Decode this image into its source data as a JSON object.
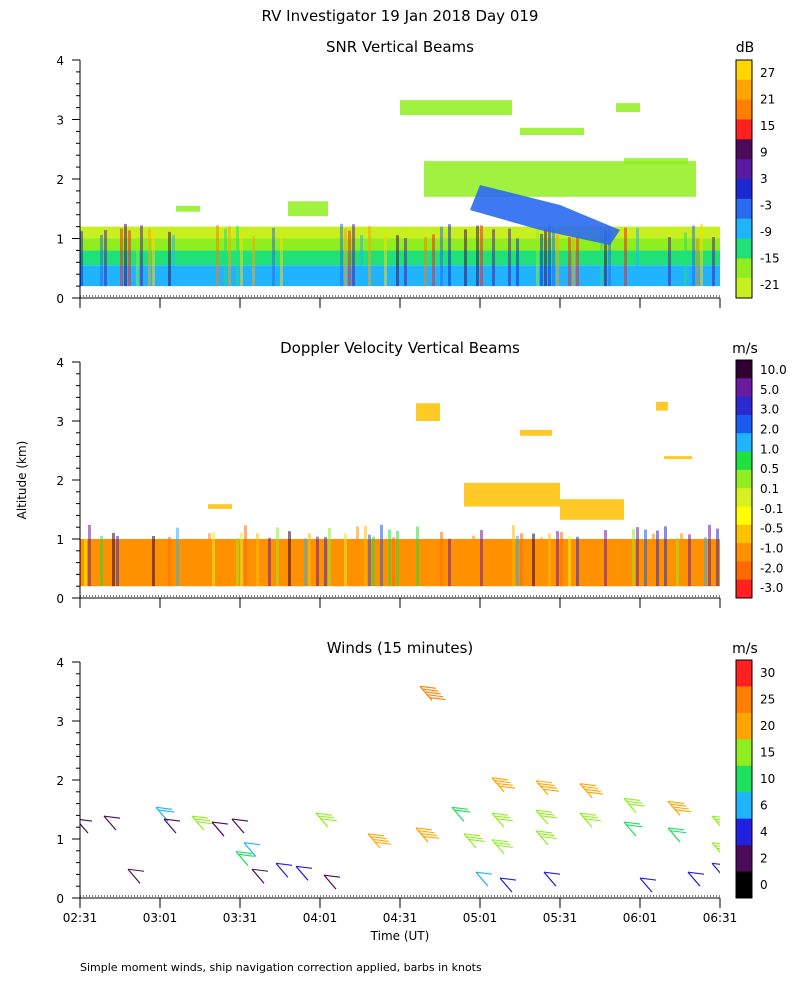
{
  "title": "RV Investigator  19 Jan 2018 Day 019",
  "y_axis_label": "Altitude (km)",
  "x_axis_label": "Time (UT)",
  "footnote": "Simple moment winds, ship navigation correction applied, barbs in knots",
  "time_ticks": [
    "02:31",
    "03:01",
    "03:31",
    "04:01",
    "04:31",
    "05:01",
    "05:31",
    "06:01",
    "06:31"
  ],
  "altitude_ticks": [
    "0",
    "1",
    "2",
    "3",
    "4"
  ],
  "chart_data": [
    {
      "type": "heatmap",
      "title": "SNR Vertical Beams",
      "xlabel": "",
      "ylabel": "Altitude (km)",
      "xlim": [
        "02:31",
        "06:31"
      ],
      "ylim": [
        0,
        4
      ],
      "colorbar": {
        "unit": "dB",
        "labels": [
          "27",
          "21",
          "15",
          "9",
          "3",
          "-3",
          "-9",
          "-15",
          "-21"
        ],
        "colors": [
          "#ffd700",
          "#ffa500",
          "#ff7f00",
          "#ff2020",
          "#4b0a5a",
          "#5a1aa0",
          "#1a2ad0",
          "#2a6af0",
          "#20b4ff",
          "#20e078",
          "#90ee20",
          "#c8f020"
        ]
      },
      "regions": [
        {
          "from_h": 0.2,
          "to_h": 0.55,
          "level": "-3"
        },
        {
          "from_h": 0.55,
          "to_h": 0.8,
          "level": "-9"
        },
        {
          "from_h": 0.8,
          "to_h": 1.0,
          "level": "-15"
        },
        {
          "from_h": 1.0,
          "to_h": 1.2,
          "level": "-21"
        }
      ]
    },
    {
      "type": "heatmap",
      "title": "Doppler Velocity Vertical Beams",
      "xlabel": "",
      "ylabel": "Altitude (km)",
      "xlim": [
        "02:31",
        "06:31"
      ],
      "ylim": [
        0,
        4
      ],
      "colorbar": {
        "unit": "m/s",
        "labels": [
          "10.0",
          "5.0",
          "3.0",
          "2.0",
          "1.0",
          "0.5",
          "0.1",
          "-0.1",
          "-0.5",
          "-1.0",
          "-2.0",
          "-3.0"
        ],
        "colors": [
          "#300030",
          "#6a1aa0",
          "#2a2ad0",
          "#1a5af0",
          "#20b4ff",
          "#20e040",
          "#90ee20",
          "#d8f020",
          "#ffff00",
          "#ffc000",
          "#ff9000",
          "#ff6a00",
          "#ff2020"
        ]
      },
      "regions": [
        {
          "from_h": 0.2,
          "to_h": 1.0,
          "level": "-1.0"
        }
      ]
    },
    {
      "type": "scatter",
      "title": "Winds (15 minutes)",
      "xlabel": "Time (UT)",
      "ylabel": "Altitude (km)",
      "xlim": [
        "02:31",
        "06:31"
      ],
      "ylim": [
        0,
        4
      ],
      "colorbar": {
        "unit": "m/s",
        "labels": [
          "30",
          "25",
          "20",
          "15",
          "10",
          "6",
          "4",
          "2",
          "0"
        ],
        "colors": [
          "#ff2020",
          "#ff7f00",
          "#ffa500",
          "#90ee20",
          "#20e060",
          "#20b4ff",
          "#2020e0",
          "#4b0a5a",
          "#000000"
        ]
      },
      "barbs": [
        {
          "t": 0.1,
          "h": 1.1,
          "speed": 2
        },
        {
          "t": 0.45,
          "h": 1.15,
          "speed": 2
        },
        {
          "t": 0.75,
          "h": 0.25,
          "speed": 2
        },
        {
          "t": 1.1,
          "h": 1.3,
          "speed": 8
        },
        {
          "t": 1.2,
          "h": 1.1,
          "speed": 2
        },
        {
          "t": 1.55,
          "h": 1.15,
          "speed": 15
        },
        {
          "t": 1.8,
          "h": 1.05,
          "speed": 2
        },
        {
          "t": 2.05,
          "h": 1.1,
          "speed": 2
        },
        {
          "t": 2.1,
          "h": 0.55,
          "speed": 10
        },
        {
          "t": 2.2,
          "h": 0.7,
          "speed": 6
        },
        {
          "t": 2.3,
          "h": 0.25,
          "speed": 2
        },
        {
          "t": 2.6,
          "h": 0.35,
          "speed": 4
        },
        {
          "t": 2.85,
          "h": 0.3,
          "speed": 4
        },
        {
          "t": 3.1,
          "h": 1.2,
          "speed": 15
        },
        {
          "t": 3.2,
          "h": 0.15,
          "speed": 2
        },
        {
          "t": 3.75,
          "h": 0.85,
          "speed": 20
        },
        {
          "t": 4.35,
          "h": 0.95,
          "speed": 20
        },
        {
          "t": 4.4,
          "h": 3.35,
          "speed": 25
        },
        {
          "t": 4.8,
          "h": 1.3,
          "speed": 10
        },
        {
          "t": 4.95,
          "h": 0.85,
          "speed": 15
        },
        {
          "t": 5.1,
          "h": 0.2,
          "speed": 6
        },
        {
          "t": 5.3,
          "h": 1.8,
          "speed": 20
        },
        {
          "t": 5.3,
          "h": 1.2,
          "speed": 15
        },
        {
          "t": 5.3,
          "h": 0.75,
          "speed": 15
        },
        {
          "t": 5.4,
          "h": 0.1,
          "speed": 4
        },
        {
          "t": 5.85,
          "h": 1.75,
          "speed": 20
        },
        {
          "t": 5.85,
          "h": 1.25,
          "speed": 15
        },
        {
          "t": 5.85,
          "h": 0.9,
          "speed": 15
        },
        {
          "t": 5.95,
          "h": 0.2,
          "speed": 4
        },
        {
          "t": 6.4,
          "h": 1.7,
          "speed": 20
        },
        {
          "t": 6.4,
          "h": 1.2,
          "speed": 15
        },
        {
          "t": 6.95,
          "h": 1.45,
          "speed": 15
        },
        {
          "t": 6.95,
          "h": 1.05,
          "speed": 10
        },
        {
          "t": 7.15,
          "h": 0.1,
          "speed": 4
        },
        {
          "t": 7.5,
          "h": 1.4,
          "speed": 20
        },
        {
          "t": 7.5,
          "h": 0.95,
          "speed": 10
        },
        {
          "t": 7.75,
          "h": 0.2,
          "speed": 4
        },
        {
          "t": 8.05,
          "h": 1.15,
          "speed": 15
        },
        {
          "t": 8.05,
          "h": 0.7,
          "speed": 15
        },
        {
          "t": 8.05,
          "h": 0.35,
          "speed": 4
        }
      ]
    }
  ]
}
